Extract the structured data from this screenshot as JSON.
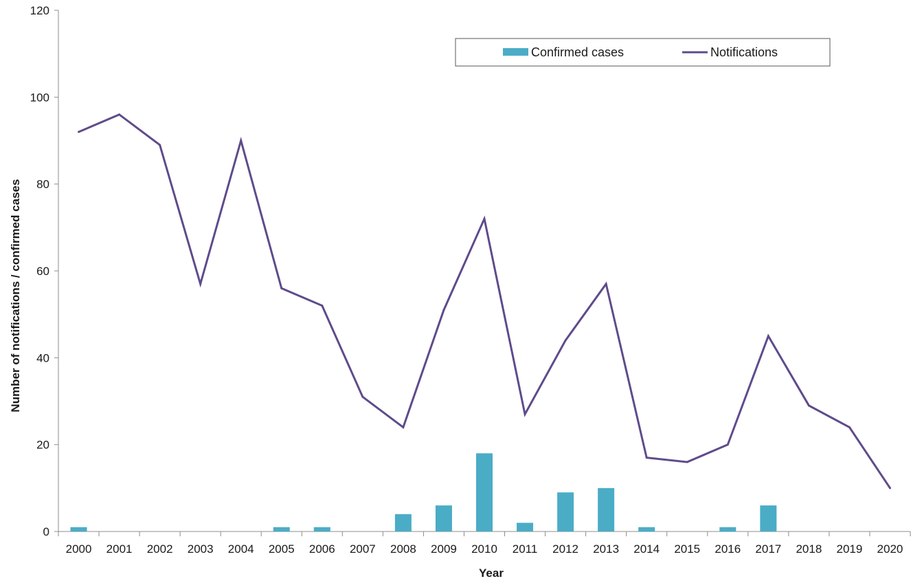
{
  "chart_data": {
    "type": "bar",
    "xlabel": "Year",
    "ylabel": "Number of notifications  / confirmed cases",
    "ylim": [
      0,
      120
    ],
    "yticks": [
      0,
      20,
      40,
      60,
      80,
      100,
      120
    ],
    "grid": false,
    "legend_position": "top-right",
    "categories": [
      "2000",
      "2001",
      "2002",
      "2003",
      "2004",
      "2005",
      "2006",
      "2007",
      "2008",
      "2009",
      "2010",
      "2011",
      "2012",
      "2013",
      "2014",
      "2015",
      "2016",
      "2017",
      "2018",
      "2019",
      "2020"
    ],
    "series": [
      {
        "name": "Confirmed cases",
        "kind": "bar",
        "color": "#4bacc6",
        "values": [
          1,
          0,
          0,
          0,
          0,
          1,
          1,
          0,
          4,
          6,
          18,
          2,
          9,
          10,
          1,
          0,
          1,
          6,
          0,
          0,
          0
        ]
      },
      {
        "name": "Notifications",
        "kind": "line",
        "color": "#5f4b8b",
        "values": [
          92,
          96,
          89,
          57,
          90,
          56,
          52,
          31,
          24,
          51,
          72,
          27,
          44,
          57,
          17,
          16,
          20,
          45,
          29,
          24,
          10
        ]
      }
    ]
  }
}
